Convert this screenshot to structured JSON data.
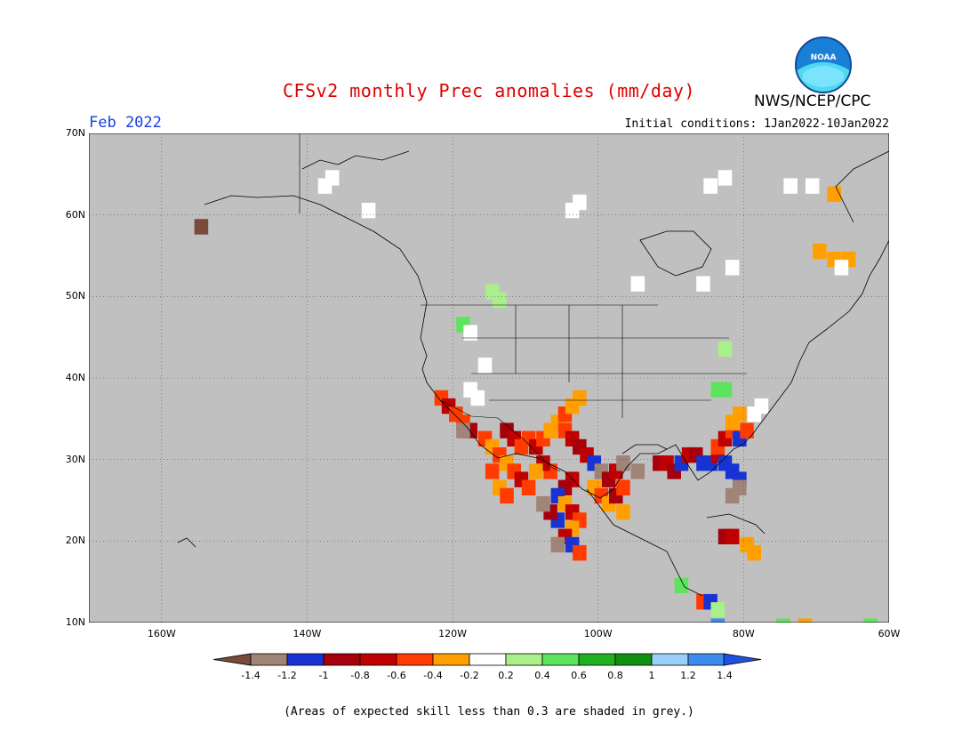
{
  "title": "CFSv2 monthly Prec anomalies (mm/day)",
  "month": "Feb 2022",
  "initial_conditions": "Initial conditions: 1Jan2022-10Jan2022",
  "agency": "NWS/NCEP/CPC",
  "logo_text": "NOAA",
  "footnote": "(Areas of expected skill less than 0.3 are shaded in grey.)",
  "map": {
    "lon_range": [
      -170,
      -60
    ],
    "lat_range": [
      10,
      70
    ],
    "lat_ticks": [
      {
        "value": 70,
        "label": "70N"
      },
      {
        "value": 60,
        "label": "60N"
      },
      {
        "value": 50,
        "label": "50N"
      },
      {
        "value": 40,
        "label": "40N"
      },
      {
        "value": 30,
        "label": "30N"
      },
      {
        "value": 20,
        "label": "20N"
      },
      {
        "value": 10,
        "label": "10N"
      }
    ],
    "lon_ticks": [
      {
        "value": -160,
        "label": "160W"
      },
      {
        "value": -140,
        "label": "140W"
      },
      {
        "value": -120,
        "label": "120W"
      },
      {
        "value": -100,
        "label": "100W"
      },
      {
        "value": -80,
        "label": "80W"
      },
      {
        "value": -60,
        "label": "60W"
      }
    ],
    "background_color": "#c0c0c0",
    "coast_color": "#000000"
  },
  "colorbar": {
    "colors": [
      "#7a4a3a",
      "#a08478",
      "#1733d4",
      "#a5000c",
      "#bf0000",
      "#ff3b00",
      "#ff9f00",
      "#ffffff",
      "#aaf08a",
      "#5ee35e",
      "#20b020",
      "#109010",
      "#9ad0f8",
      "#3c8cf0",
      "#2050e0"
    ],
    "labels": [
      "-1.4",
      "-1.2",
      "-1",
      "-0.8",
      "-0.6",
      "-0.4",
      "-0.2",
      "0.2",
      "0.4",
      "0.6",
      "0.8",
      "1",
      "1.2",
      "1.4"
    ]
  },
  "anomaly_cells": [
    {
      "lon": -155,
      "lat": 59,
      "color": "#7a4a3a"
    },
    {
      "lon": -138,
      "lat": 64,
      "color": "#ffffff"
    },
    {
      "lon": -137,
      "lat": 65,
      "color": "#ffffff"
    },
    {
      "lon": -132,
      "lat": 61,
      "color": "#ffffff"
    },
    {
      "lon": -104,
      "lat": 61,
      "color": "#ffffff"
    },
    {
      "lon": -103,
      "lat": 62,
      "color": "#ffffff"
    },
    {
      "lon": -115,
      "lat": 51,
      "color": "#aaf08a"
    },
    {
      "lon": -114,
      "lat": 50,
      "color": "#aaf08a"
    },
    {
      "lon": -119,
      "lat": 47,
      "color": "#5ee35e"
    },
    {
      "lon": -118,
      "lat": 46,
      "color": "#ffffff"
    },
    {
      "lon": -116,
      "lat": 42,
      "color": "#ffffff"
    },
    {
      "lon": -118,
      "lat": 39,
      "color": "#ffffff"
    },
    {
      "lon": -117,
      "lat": 38,
      "color": "#ffffff"
    },
    {
      "lon": -84,
      "lat": 39,
      "color": "#5ee35e"
    },
    {
      "lon": -83,
      "lat": 39,
      "color": "#5ee35e"
    },
    {
      "lon": -83,
      "lat": 44,
      "color": "#aaf08a"
    },
    {
      "lon": -85,
      "lat": 64,
      "color": "#ffffff"
    },
    {
      "lon": -83,
      "lat": 65,
      "color": "#ffffff"
    },
    {
      "lon": -82,
      "lat": 54,
      "color": "#ffffff"
    },
    {
      "lon": -86,
      "lat": 52,
      "color": "#ffffff"
    },
    {
      "lon": -95,
      "lat": 52,
      "color": "#ffffff"
    },
    {
      "lon": -74,
      "lat": 64,
      "color": "#ffffff"
    },
    {
      "lon": -71,
      "lat": 64,
      "color": "#ffffff"
    },
    {
      "lon": -68,
      "lat": 63,
      "color": "#ff9f00"
    },
    {
      "lon": -70,
      "lat": 56,
      "color": "#ff9f00"
    },
    {
      "lon": -68,
      "lat": 55,
      "color": "#ff9f00"
    },
    {
      "lon": -66,
      "lat": 55,
      "color": "#ff9f00"
    },
    {
      "lon": -67,
      "lat": 54,
      "color": "#ffffff"
    },
    {
      "lon": -122,
      "lat": 38,
      "color": "#ff3b00"
    },
    {
      "lon": -121,
      "lat": 37,
      "color": "#bf0000"
    },
    {
      "lon": -120,
      "lat": 36,
      "color": "#ff3b00"
    },
    {
      "lon": -119,
      "lat": 35,
      "color": "#ff3b00"
    },
    {
      "lon": -118,
      "lat": 34,
      "color": "#a5000c"
    },
    {
      "lon": -119,
      "lat": 34,
      "color": "#a08478"
    },
    {
      "lon": -116,
      "lat": 33,
      "color": "#ff3b00"
    },
    {
      "lon": -115,
      "lat": 32,
      "color": "#ff9f00"
    },
    {
      "lon": -114,
      "lat": 31,
      "color": "#ff3b00"
    },
    {
      "lon": -113,
      "lat": 30,
      "color": "#ff9f00"
    },
    {
      "lon": -112,
      "lat": 29,
      "color": "#ff3b00"
    },
    {
      "lon": -111,
      "lat": 28,
      "color": "#bf0000"
    },
    {
      "lon": -110,
      "lat": 27,
      "color": "#ff3b00"
    },
    {
      "lon": -115,
      "lat": 29,
      "color": "#ff3b00"
    },
    {
      "lon": -114,
      "lat": 27,
      "color": "#ff9f00"
    },
    {
      "lon": -113,
      "lat": 26,
      "color": "#ff3b00"
    },
    {
      "lon": -113,
      "lat": 34,
      "color": "#a5000c"
    },
    {
      "lon": -112,
      "lat": 33,
      "color": "#bf0000"
    },
    {
      "lon": -111,
      "lat": 32,
      "color": "#ff3b00"
    },
    {
      "lon": -110,
      "lat": 33,
      "color": "#ff3b00"
    },
    {
      "lon": -109,
      "lat": 32,
      "color": "#bf0000"
    },
    {
      "lon": -108,
      "lat": 33,
      "color": "#ff3b00"
    },
    {
      "lon": -107,
      "lat": 34,
      "color": "#ff9f00"
    },
    {
      "lon": -106,
      "lat": 35,
      "color": "#ff9f00"
    },
    {
      "lon": -105,
      "lat": 36,
      "color": "#ff3b00"
    },
    {
      "lon": -104,
      "lat": 37,
      "color": "#ff9f00"
    },
    {
      "lon": -103,
      "lat": 38,
      "color": "#ff9f00"
    },
    {
      "lon": -105,
      "lat": 34,
      "color": "#ff3b00"
    },
    {
      "lon": -104,
      "lat": 33,
      "color": "#bf0000"
    },
    {
      "lon": -103,
      "lat": 32,
      "color": "#a5000c"
    },
    {
      "lon": -102,
      "lat": 31,
      "color": "#bf0000"
    },
    {
      "lon": -101,
      "lat": 30,
      "color": "#1733d4"
    },
    {
      "lon": -100,
      "lat": 29,
      "color": "#a08478"
    },
    {
      "lon": -99,
      "lat": 28,
      "color": "#a5000c"
    },
    {
      "lon": -98,
      "lat": 29,
      "color": "#bf0000"
    },
    {
      "lon": -97,
      "lat": 30,
      "color": "#a08478"
    },
    {
      "lon": -101,
      "lat": 27,
      "color": "#ff9f00"
    },
    {
      "lon": -100,
      "lat": 26,
      "color": "#ff3b00"
    },
    {
      "lon": -99,
      "lat": 25,
      "color": "#ff9f00"
    },
    {
      "lon": -104,
      "lat": 28,
      "color": "#bf0000"
    },
    {
      "lon": -105,
      "lat": 27,
      "color": "#a5000c"
    },
    {
      "lon": -106,
      "lat": 26,
      "color": "#1733d4"
    },
    {
      "lon": -105,
      "lat": 25,
      "color": "#ff9f00"
    },
    {
      "lon": -104,
      "lat": 24,
      "color": "#bf0000"
    },
    {
      "lon": -103,
      "lat": 23,
      "color": "#ff3b00"
    },
    {
      "lon": -104,
      "lat": 22,
      "color": "#ff9f00"
    },
    {
      "lon": -105,
      "lat": 21,
      "color": "#bf0000"
    },
    {
      "lon": -104,
      "lat": 20,
      "color": "#1733d4"
    },
    {
      "lon": -103,
      "lat": 19,
      "color": "#ff3b00"
    },
    {
      "lon": -106,
      "lat": 23,
      "color": "#1733d4"
    },
    {
      "lon": -107,
      "lat": 24,
      "color": "#a5000c"
    },
    {
      "lon": -108,
      "lat": 25,
      "color": "#a08478"
    },
    {
      "lon": -106,
      "lat": 20,
      "color": "#a08478"
    },
    {
      "lon": -107,
      "lat": 29,
      "color": "#ff3b00"
    },
    {
      "lon": -108,
      "lat": 30,
      "color": "#bf0000"
    },
    {
      "lon": -109,
      "lat": 29,
      "color": "#ff9f00"
    },
    {
      "lon": -97,
      "lat": 24,
      "color": "#ff9f00"
    },
    {
      "lon": -98,
      "lat": 26,
      "color": "#a5000c"
    },
    {
      "lon": -97,
      "lat": 27,
      "color": "#ff3b00"
    },
    {
      "lon": -95,
      "lat": 29,
      "color": "#a08478"
    },
    {
      "lon": -92,
      "lat": 30,
      "color": "#a5000c"
    },
    {
      "lon": -91,
      "lat": 30,
      "color": "#bf0000"
    },
    {
      "lon": -90,
      "lat": 29,
      "color": "#a5000c"
    },
    {
      "lon": -89,
      "lat": 30,
      "color": "#1733d4"
    },
    {
      "lon": -88,
      "lat": 31,
      "color": "#bf0000"
    },
    {
      "lon": -87,
      "lat": 31,
      "color": "#a5000c"
    },
    {
      "lon": -86,
      "lat": 30,
      "color": "#1733d4"
    },
    {
      "lon": -85,
      "lat": 30,
      "color": "#1733d4"
    },
    {
      "lon": -84,
      "lat": 31,
      "color": "#bf0000"
    },
    {
      "lon": -83,
      "lat": 30,
      "color": "#1733d4"
    },
    {
      "lon": -82,
      "lat": 29,
      "color": "#1733d4"
    },
    {
      "lon": -81,
      "lat": 28,
      "color": "#1733d4"
    },
    {
      "lon": -81,
      "lat": 27,
      "color": "#a08478"
    },
    {
      "lon": -82,
      "lat": 26,
      "color": "#a08478"
    },
    {
      "lon": -84,
      "lat": 32,
      "color": "#ff3b00"
    },
    {
      "lon": -83,
      "lat": 33,
      "color": "#bf0000"
    },
    {
      "lon": -82,
      "lat": 34,
      "color": "#ff3b00"
    },
    {
      "lon": -81,
      "lat": 33,
      "color": "#1733d4"
    },
    {
      "lon": -80,
      "lat": 34,
      "color": "#ff3b00"
    },
    {
      "lon": -82,
      "lat": 35,
      "color": "#ff9f00"
    },
    {
      "lon": -81,
      "lat": 36,
      "color": "#ff9f00"
    },
    {
      "lon": -79,
      "lat": 36,
      "color": "#ffffff"
    },
    {
      "lon": -78,
      "lat": 37,
      "color": "#ffffff"
    },
    {
      "lon": -83,
      "lat": 21,
      "color": "#a5000c"
    },
    {
      "lon": -82,
      "lat": 21,
      "color": "#bf0000"
    },
    {
      "lon": -80,
      "lat": 20,
      "color": "#ff9f00"
    },
    {
      "lon": -79,
      "lat": 19,
      "color": "#ff9f00"
    },
    {
      "lon": -89,
      "lat": 15,
      "color": "#5ee35e"
    },
    {
      "lon": -86,
      "lat": 13,
      "color": "#ff3b00"
    },
    {
      "lon": -85,
      "lat": 13,
      "color": "#1733d4"
    },
    {
      "lon": -84,
      "lat": 12,
      "color": "#aaf08a"
    },
    {
      "lon": -84,
      "lat": 10,
      "color": "#3c8cf0"
    },
    {
      "lon": -75,
      "lat": 10,
      "color": "#5ee35e"
    },
    {
      "lon": -72,
      "lat": 10,
      "color": "#ff9f00"
    },
    {
      "lon": -63,
      "lat": 10,
      "color": "#5ee35e"
    }
  ]
}
